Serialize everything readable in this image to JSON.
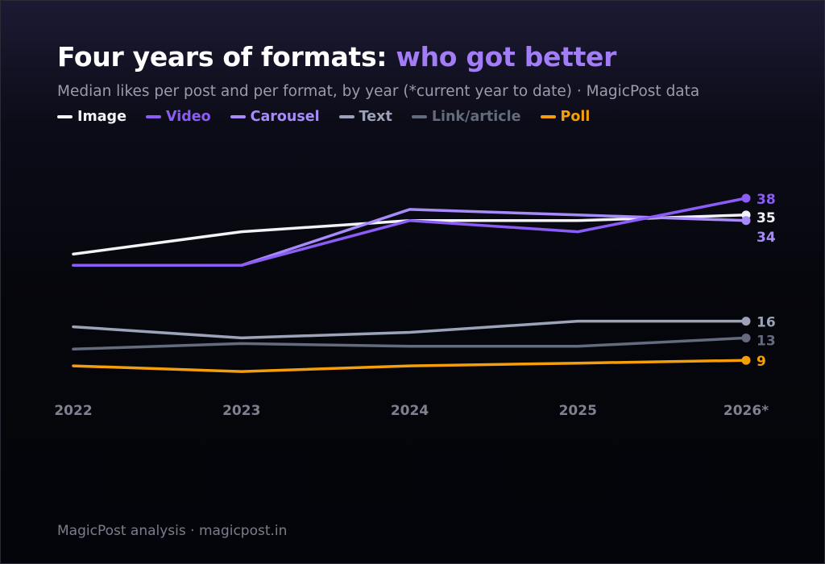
{
  "header": {
    "title_main": "Four years of formats: ",
    "title_accent": "who got better",
    "subtitle": "Median likes per post and per format, by year (*current year to date) · MagicPost data"
  },
  "colors": {
    "image": "#f2f2f7",
    "video": "#8b5cf6",
    "carousel": "#a78bfa",
    "text": "#9ca3b8",
    "link": "#636b7d",
    "poll": "#f59e0b",
    "axis_label": "#7d8190"
  },
  "chart_data": {
    "type": "line",
    "x": [
      "2022",
      "2023",
      "2024",
      "2025",
      "2026*"
    ],
    "ylim": [
      6,
      38
    ],
    "grid": false,
    "legend": "top-left",
    "series": [
      {
        "name": "Image",
        "key": "image",
        "values": [
          28,
          32,
          34,
          34,
          35
        ],
        "end_label": "35"
      },
      {
        "name": "Video",
        "key": "video",
        "values": [
          26,
          26,
          34,
          32,
          38
        ],
        "end_label": "38"
      },
      {
        "name": "Carousel",
        "key": "carousel",
        "values": [
          26,
          26,
          36,
          35,
          34
        ],
        "end_label": "34"
      },
      {
        "name": "Text",
        "key": "text",
        "values": [
          15,
          13,
          14,
          16,
          16
        ],
        "end_label": "16"
      },
      {
        "name": "Link/article",
        "key": "link",
        "values": [
          11,
          12,
          11.5,
          11.5,
          13
        ],
        "end_label": "13"
      },
      {
        "name": "Poll",
        "key": "poll",
        "values": [
          8,
          7,
          8,
          8.5,
          9
        ],
        "end_label": "9"
      }
    ]
  },
  "footer": {
    "source": "MagicPost analysis · magicpost.in"
  }
}
